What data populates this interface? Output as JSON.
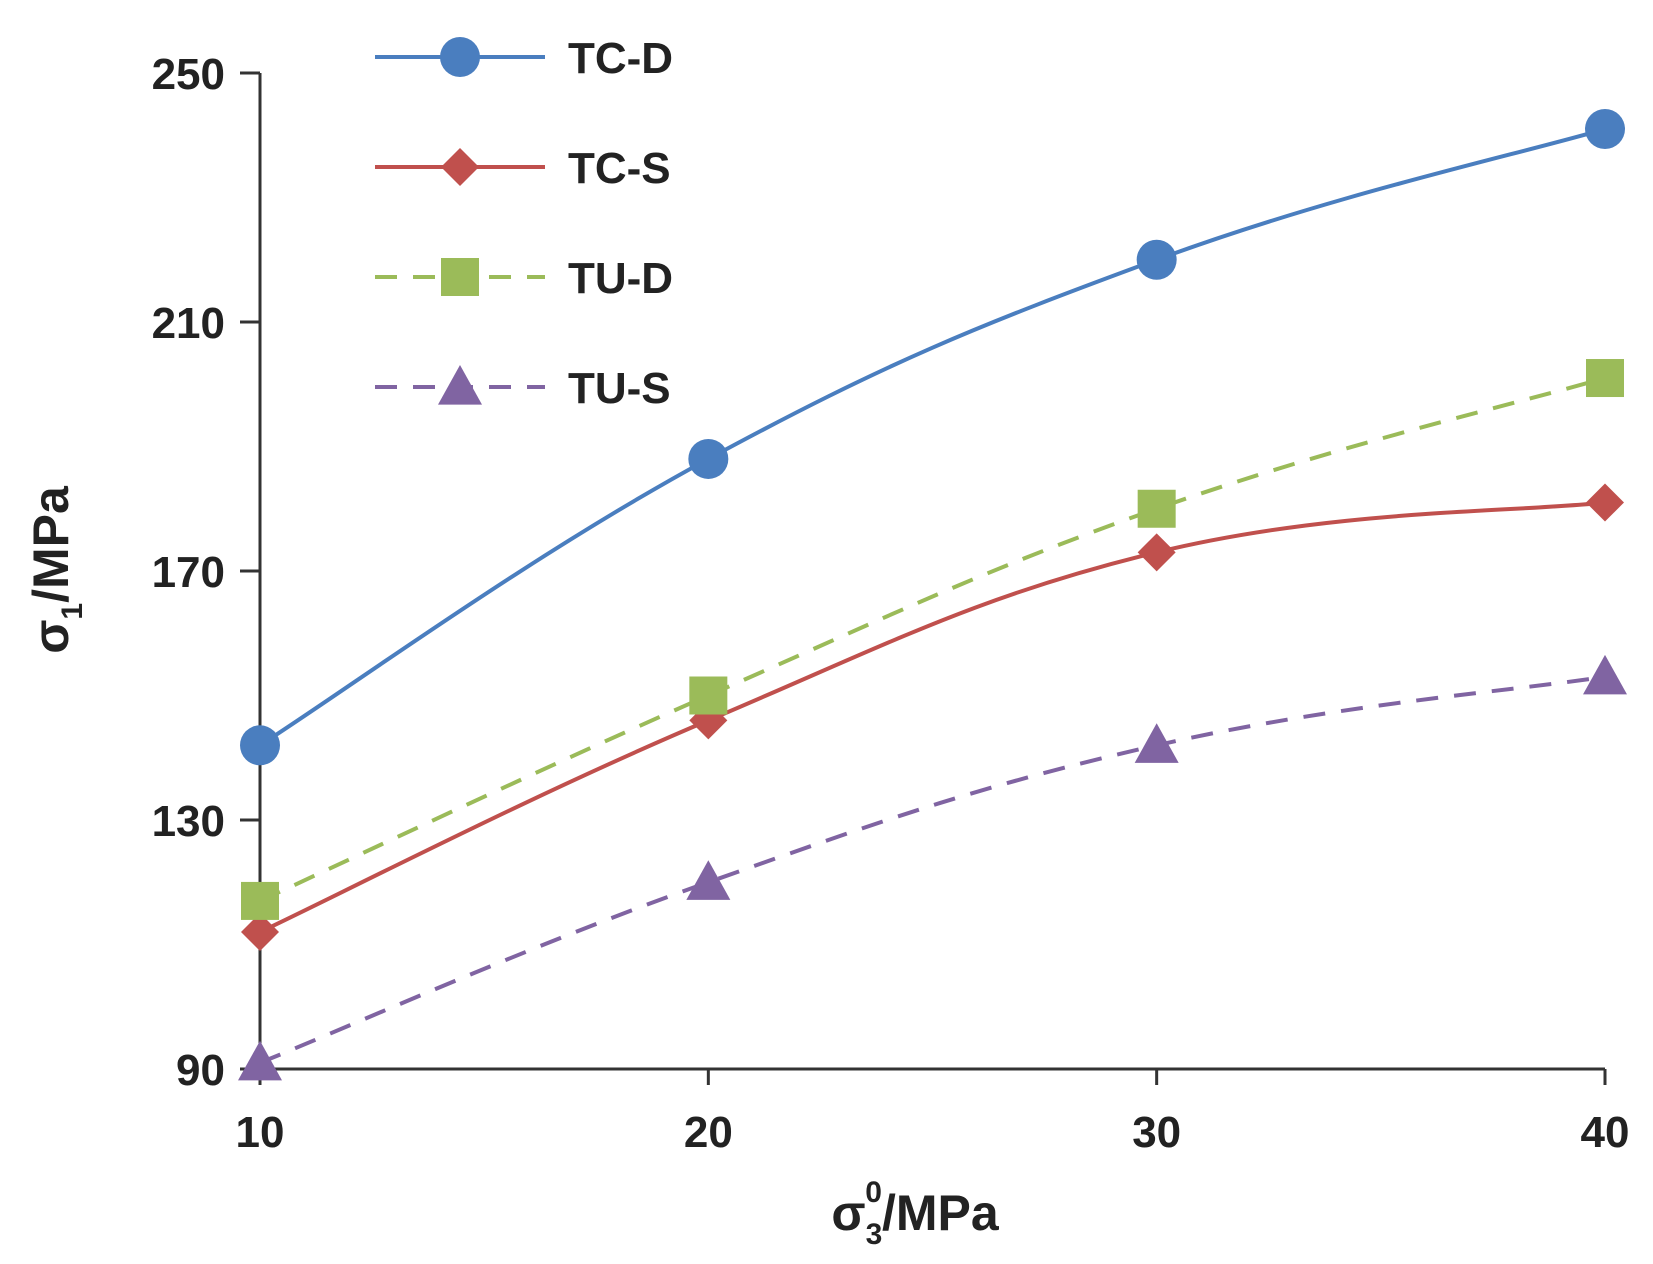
{
  "chart_data": {
    "type": "line",
    "title": "",
    "x": [
      10,
      20,
      30,
      40
    ],
    "xlim": [
      10,
      40
    ],
    "ylim": [
      90,
      250
    ],
    "xticks": [
      10,
      20,
      30,
      40
    ],
    "yticks": [
      90,
      130,
      170,
      210,
      250
    ],
    "xlabel": {
      "base": "σ",
      "sub": "3",
      "sup": "0",
      "unit": "/MPa"
    },
    "ylabel": {
      "base": "σ",
      "sub": "1",
      "unit": "/MPa"
    },
    "grid": false,
    "legend_position": "top-left",
    "series": [
      {
        "name": "TC-D",
        "values": [
          142,
          188,
          220,
          241
        ],
        "color": "#4a7ebf",
        "marker": "circle",
        "dashed": false
      },
      {
        "name": "TC-S",
        "values": [
          112,
          146,
          173,
          181
        ],
        "color": "#c0504d",
        "marker": "diamond",
        "dashed": false
      },
      {
        "name": "TU-D",
        "values": [
          117,
          150,
          180,
          201
        ],
        "color": "#9bbb59",
        "marker": "square",
        "dashed": true
      },
      {
        "name": "TU-S",
        "values": [
          91,
          120,
          142,
          153
        ],
        "color": "#8064a2",
        "marker": "triangle",
        "dashed": true
      }
    ]
  }
}
